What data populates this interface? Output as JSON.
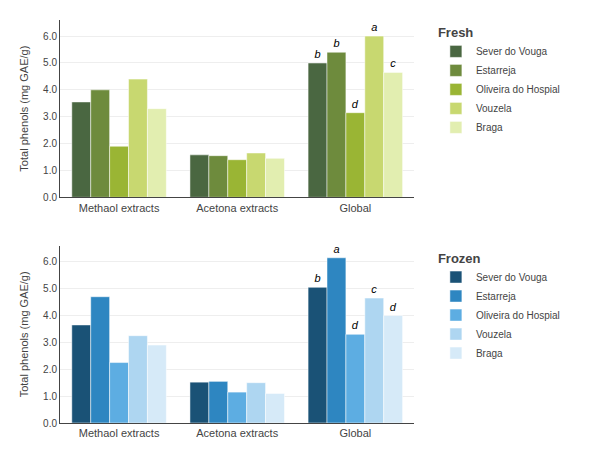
{
  "chart_data": [
    {
      "type": "bar",
      "title": "Fresh",
      "categories": [
        "Methaol extracts",
        "Acetona extracts",
        "Global"
      ],
      "series": [
        {
          "name": "Sever do Vouga",
          "color": "#4A6741",
          "values": [
            3.55,
            1.58,
            5.0
          ]
        },
        {
          "name": "Estarreja",
          "color": "#6E8B3D",
          "values": [
            4.0,
            1.55,
            5.4
          ]
        },
        {
          "name": "Oliveira do Hospial",
          "color": "#9AB534",
          "values": [
            1.9,
            1.4,
            3.15
          ]
        },
        {
          "name": "Vouzela",
          "color": "#C8D870",
          "values": [
            4.4,
            1.65,
            6.0
          ]
        },
        {
          "name": "Braga",
          "color": "#E2EEB0",
          "values": [
            3.3,
            1.45,
            4.65
          ]
        }
      ],
      "annotations": [
        {
          "category": "Global",
          "series": "Sever do Vouga",
          "text": "b"
        },
        {
          "category": "Global",
          "series": "Estarreja",
          "text": "b"
        },
        {
          "category": "Global",
          "series": "Oliveira do Hospial",
          "text": "d"
        },
        {
          "category": "Global",
          "series": "Vouzela",
          "text": "a"
        },
        {
          "category": "Global",
          "series": "Braga",
          "text": "c"
        }
      ],
      "ylabel": "Total phenols (mg GAE/g)",
      "ylim": [
        0,
        6.6
      ],
      "yticks": [
        {
          "value": 0,
          "label": "0.0"
        },
        {
          "value": 1,
          "label": "1.0"
        },
        {
          "value": 2,
          "label": "2.0"
        },
        {
          "value": 3,
          "label": "3.0"
        },
        {
          "value": 4,
          "label": "4.0"
        },
        {
          "value": 5,
          "label": "5.0"
        },
        {
          "value": 6,
          "label": "6.0"
        }
      ],
      "grid": true,
      "legend": "right"
    },
    {
      "type": "bar",
      "title": "Frozen",
      "categories": [
        "Methaol extracts",
        "Acetona extracts",
        "Global"
      ],
      "series": [
        {
          "name": "Sever do Vouga",
          "color": "#1A5276",
          "values": [
            3.65,
            1.52,
            5.05
          ]
        },
        {
          "name": "Estarreja",
          "color": "#2E86C1",
          "values": [
            4.7,
            1.55,
            6.15
          ]
        },
        {
          "name": "Oliveira do Hospial",
          "color": "#5DADE2",
          "values": [
            2.25,
            1.15,
            3.3
          ]
        },
        {
          "name": "Vouzela",
          "color": "#AED6F1",
          "values": [
            3.25,
            1.5,
            4.65
          ]
        },
        {
          "name": "Braga",
          "color": "#D6EAF8",
          "values": [
            2.9,
            1.1,
            4.0
          ]
        }
      ],
      "annotations": [
        {
          "category": "Global",
          "series": "Sever do Vouga",
          "text": "b"
        },
        {
          "category": "Global",
          "series": "Estarreja",
          "text": "a"
        },
        {
          "category": "Global",
          "series": "Oliveira do Hospial",
          "text": "d"
        },
        {
          "category": "Global",
          "series": "Vouzela",
          "text": "c"
        },
        {
          "category": "Global",
          "series": "Braga",
          "text": "d"
        }
      ],
      "ylabel": "Total phenols (mg GAE/g)",
      "ylim": [
        0,
        6.6
      ],
      "yticks": [
        {
          "value": 0,
          "label": "0.0"
        },
        {
          "value": 1,
          "label": "1.0"
        },
        {
          "value": 2,
          "label": "2.0"
        },
        {
          "value": 3,
          "label": "3.0"
        },
        {
          "value": 4,
          "label": "4.0"
        },
        {
          "value": 5,
          "label": "5.0"
        },
        {
          "value": 6,
          "label": "6.0"
        }
      ],
      "grid": true,
      "legend": "right"
    }
  ]
}
